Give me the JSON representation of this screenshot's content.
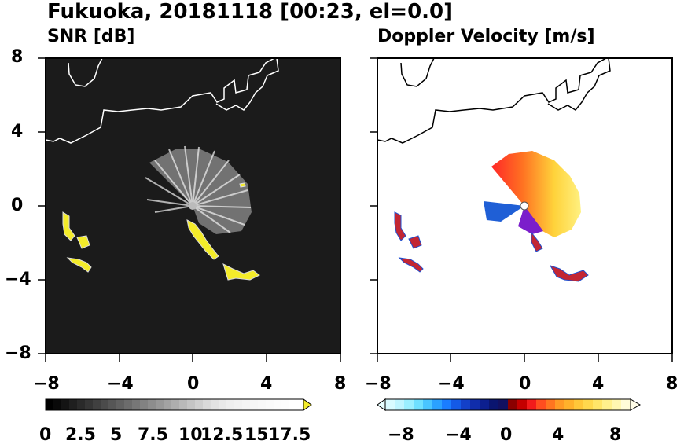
{
  "title": "Fukuoka, 20181118 [00:23, el=0.0]",
  "panels": [
    {
      "subtitle": "SNR [dB]",
      "x_ticks": [
        "−8",
        "−4",
        "0",
        "4",
        "8"
      ],
      "y_ticks": [
        "8",
        "4",
        "0",
        "−4",
        "−8"
      ],
      "colorbar_labels": [
        "0",
        "2.5",
        "5",
        "7.5",
        "10",
        "12.5",
        "15",
        "17.5"
      ]
    },
    {
      "subtitle": "Doppler Velocity [m/s]",
      "x_ticks": [
        "−8",
        "−4",
        "0",
        "4",
        "8"
      ],
      "colorbar_labels": [
        "−8",
        "−4",
        "0",
        "4",
        "8"
      ]
    }
  ],
  "chart_data": [
    {
      "type": "heatmap",
      "title": "SNR [dB]",
      "xlim": [
        -8,
        8
      ],
      "ylim": [
        -8,
        8
      ],
      "colorbar": {
        "min": 0,
        "max": 17.5,
        "colormap": "grayscale-to-yellow"
      }
    },
    {
      "type": "heatmap",
      "title": "Doppler Velocity [m/s]",
      "xlim": [
        -8,
        8
      ],
      "ylim": [
        -8,
        8
      ],
      "colorbar": {
        "min": -8,
        "max": 8,
        "colormap": "blue-to-red-to-yellow"
      }
    }
  ],
  "colors": {
    "snr_background": "#1b1b1b",
    "echo_yellow": "#f4ec2a",
    "blue": "#1f5fd6",
    "red": "#d4301c"
  }
}
